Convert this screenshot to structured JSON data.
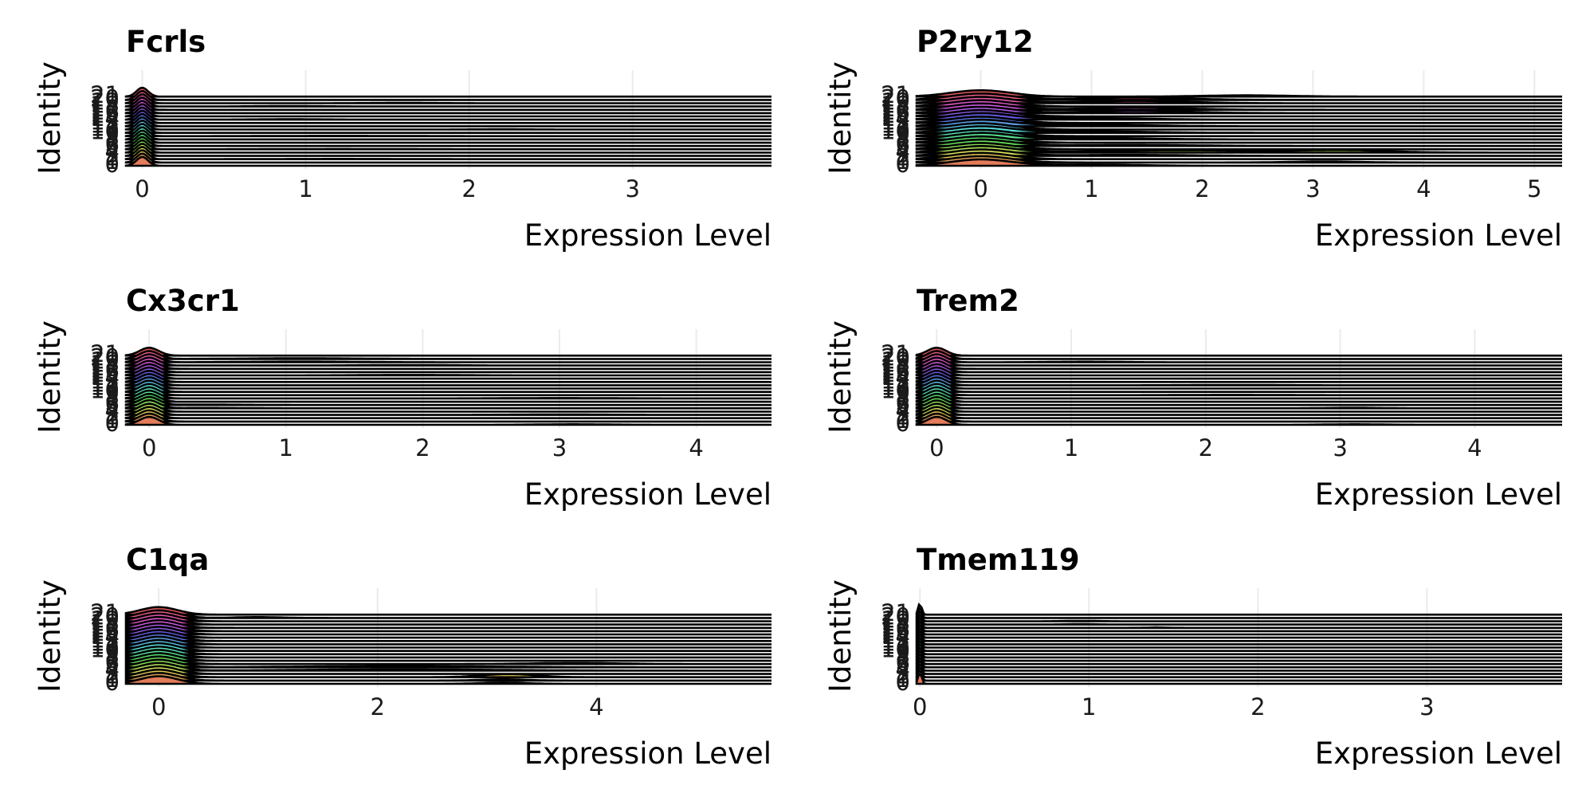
{
  "figure": {
    "ridge_overlap_scale": 3.2,
    "identity_count": 22
  },
  "chart_data": [
    {
      "type": "ridgeline",
      "title": "Fcrls",
      "xlabel": "Expression Level",
      "ylabel": "Identity",
      "xlim": [
        -0.1,
        3.85
      ],
      "xticks": [
        0,
        1,
        2,
        3
      ],
      "y_tick_labels": [
        "0",
        "1",
        "2",
        "3",
        "4",
        "5",
        "6",
        "7",
        "8",
        "9",
        "10",
        "11",
        "12",
        "13",
        "14",
        "15",
        "16",
        "17",
        "18",
        "19",
        "20",
        "21"
      ],
      "grid": true,
      "legend": "none",
      "main_peak": {
        "center": 0,
        "width": 0.035,
        "height": 0.85
      },
      "tails": [
        {
          "groups": [
            2,
            5,
            9
          ],
          "center": 1.2,
          "width": 0.4,
          "height": 0.03
        },
        {
          "groups": [
            14,
            18
          ],
          "center": 0.9,
          "width": 0.25,
          "height": 0.04
        },
        {
          "groups": [
            19
          ],
          "center": 1.6,
          "width": 0.2,
          "height": 0.03
        },
        {
          "groups": [
            11
          ],
          "center": 2.2,
          "width": 0.2,
          "height": 0.025
        }
      ]
    },
    {
      "type": "ridgeline",
      "title": "P2ry12",
      "xlabel": "Expression Level",
      "ylabel": "Identity",
      "xlim": [
        -0.58,
        5.25
      ],
      "xticks": [
        0,
        1,
        2,
        3,
        4,
        5
      ],
      "y_tick_labels": [
        "0",
        "1",
        "2",
        "3",
        "4",
        "5",
        "6",
        "7",
        "8",
        "9",
        "10",
        "11",
        "12",
        "13",
        "14",
        "15",
        "16",
        "17",
        "18",
        "19",
        "20",
        "21"
      ],
      "grid": true,
      "legend": "none",
      "main_peak": {
        "center": 0,
        "width": 0.27,
        "height": 0.6
      },
      "tails": [
        {
          "groups": [
            0
          ],
          "center": 1.0,
          "width": 0.4,
          "height": 0.12
        },
        {
          "groups": [
            1
          ],
          "center": 3.1,
          "width": 0.3,
          "height": 0.1
        },
        {
          "groups": [
            4
          ],
          "center": 1.8,
          "width": 0.8,
          "height": 0.22
        },
        {
          "groups": [
            4
          ],
          "center": 3.3,
          "width": 0.4,
          "height": 0.2
        },
        {
          "groups": [
            3,
            6
          ],
          "center": 1.3,
          "width": 0.6,
          "height": 0.1
        },
        {
          "groups": [
            8,
            10,
            12,
            14
          ],
          "center": 1.0,
          "width": 0.5,
          "height": 0.15
        },
        {
          "groups": [
            16,
            17,
            19,
            20
          ],
          "center": 1.4,
          "width": 0.45,
          "height": 0.22
        },
        {
          "groups": [
            21
          ],
          "center": 2.4,
          "width": 0.4,
          "height": 0.12
        }
      ]
    },
    {
      "type": "ridgeline",
      "title": "Cx3cr1",
      "xlabel": "Expression Level",
      "ylabel": "Identity",
      "xlim": [
        -0.17,
        4.55
      ],
      "xticks": [
        0,
        1,
        2,
        3,
        4
      ],
      "y_tick_labels": [
        "0",
        "1",
        "2",
        "3",
        "4",
        "5",
        "6",
        "7",
        "8",
        "9",
        "10",
        "11",
        "12",
        "13",
        "14",
        "15",
        "16",
        "17",
        "18",
        "19",
        "20",
        "21"
      ],
      "grid": true,
      "legend": "none",
      "main_peak": {
        "center": 0,
        "width": 0.07,
        "height": 0.75
      },
      "tails": [
        {
          "groups": [
            0
          ],
          "center": 3.1,
          "width": 0.25,
          "height": 0.05
        },
        {
          "groups": [
            5,
            6
          ],
          "center": 0.4,
          "width": 0.3,
          "height": 0.04
        },
        {
          "groups": [
            3,
            8
          ],
          "center": 3.0,
          "width": 0.4,
          "height": 0.04
        },
        {
          "groups": [
            15,
            18
          ],
          "center": 1.9,
          "width": 0.35,
          "height": 0.05
        },
        {
          "groups": [
            19,
            20
          ],
          "center": 1.1,
          "width": 0.4,
          "height": 0.06
        }
      ]
    },
    {
      "type": "ridgeline",
      "title": "Trem2",
      "xlabel": "Expression Level",
      "ylabel": "Identity",
      "xlim": [
        -0.15,
        4.65
      ],
      "xticks": [
        0,
        1,
        2,
        3,
        4
      ],
      "y_tick_labels": [
        "0",
        "1",
        "2",
        "3",
        "4",
        "5",
        "6",
        "7",
        "8",
        "9",
        "10",
        "11",
        "12",
        "13",
        "14",
        "15",
        "16",
        "17",
        "18",
        "19",
        "20",
        "21"
      ],
      "grid": true,
      "legend": "none",
      "main_peak": {
        "center": 0,
        "width": 0.07,
        "height": 0.75
      },
      "tails": [
        {
          "groups": [
            0
          ],
          "center": 3.1,
          "width": 0.2,
          "height": 0.05
        },
        {
          "groups": [
            5
          ],
          "center": 3.1,
          "width": 0.2,
          "height": 0.05
        },
        {
          "groups": [
            9,
            12
          ],
          "center": 2.2,
          "width": 0.35,
          "height": 0.03
        },
        {
          "groups": [
            19
          ],
          "center": 1.1,
          "width": 0.25,
          "height": 0.05
        }
      ]
    },
    {
      "type": "ridgeline",
      "title": "C1qa",
      "xlabel": "Expression Level",
      "ylabel": "Identity",
      "xlim": [
        -0.3,
        5.6
      ],
      "xticks": [
        0,
        2,
        4
      ],
      "y_tick_labels": [
        "0",
        "1",
        "2",
        "3",
        "4",
        "5",
        "6",
        "7",
        "8",
        "9",
        "10",
        "11",
        "12",
        "13",
        "14",
        "15",
        "16",
        "17",
        "18",
        "19",
        "20",
        "21"
      ],
      "grid": true,
      "legend": "none",
      "main_peak": {
        "center": 0,
        "width": 0.17,
        "height": 0.72
      },
      "tails": [
        {
          "groups": [
            0,
            1
          ],
          "center": 3.15,
          "width": 0.2,
          "height": 0.12
        },
        {
          "groups": [
            2
          ],
          "center": 3.2,
          "width": 0.25,
          "height": 0.3
        },
        {
          "groups": [
            4,
            5
          ],
          "center": 2.2,
          "width": 0.9,
          "height": 0.12
        },
        {
          "groups": [
            6
          ],
          "center": 3.8,
          "width": 0.4,
          "height": 0.1
        },
        {
          "groups": [
            20
          ],
          "center": 0.9,
          "width": 0.2,
          "height": 0.08
        }
      ]
    },
    {
      "type": "ridgeline",
      "title": "Tmem119",
      "xlabel": "Expression Level",
      "ylabel": "Identity",
      "xlim": [
        -0.02,
        3.8
      ],
      "xticks": [
        0,
        1,
        2,
        3
      ],
      "y_tick_labels": [
        "0",
        "1",
        "2",
        "3",
        "4",
        "5",
        "6",
        "7",
        "8",
        "9",
        "10",
        "11",
        "12",
        "13",
        "14",
        "15",
        "16",
        "17",
        "18",
        "19",
        "20",
        "21"
      ],
      "grid": true,
      "legend": "none",
      "main_peak": {
        "center": 0,
        "width": 0.01,
        "height": 1.1
      },
      "tails": [
        {
          "groups": [
            18,
            19
          ],
          "center": 0.95,
          "width": 0.1,
          "height": 0.04
        },
        {
          "groups": [
            17
          ],
          "center": 1.4,
          "width": 0.05,
          "height": 0.04
        }
      ]
    }
  ]
}
